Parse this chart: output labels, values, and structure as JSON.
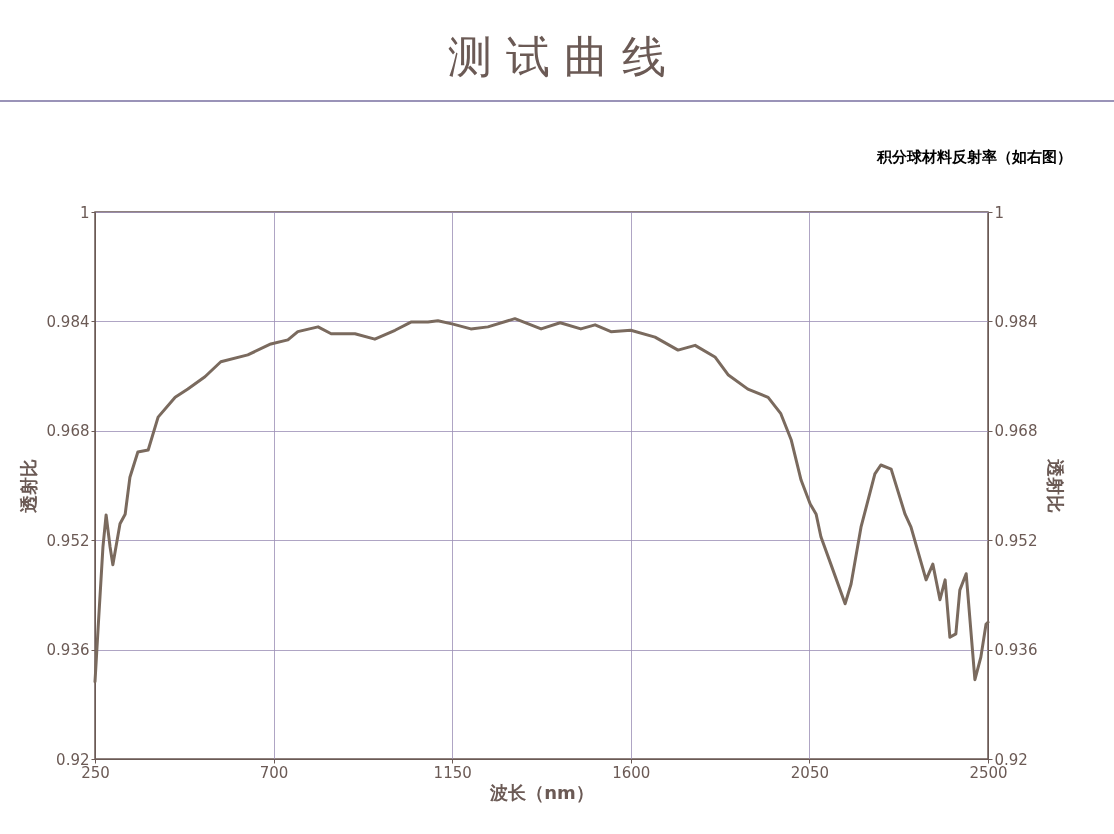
{
  "chart_data": {
    "type": "line",
    "title": "测 试 曲 线",
    "xlabel": "波长（nm）",
    "ylabel": "透射比",
    "y2label": "透射比",
    "annotations": [
      "积分球材料反射率（如右图）"
    ],
    "series": [
      {
        "color": "#7a6a5e",
        "x": [
          250,
          258,
          270,
          278,
          288,
          295,
          313,
          326,
          338,
          358,
          384,
          409,
          452,
          484,
          527,
          567,
          635,
          693,
          736,
          761,
          812,
          845,
          905,
          955,
          1006,
          1046,
          1089,
          1114,
          1152,
          1197,
          1240,
          1308,
          1374,
          1422,
          1474,
          1510,
          1550,
          1600,
          1661,
          1719,
          1762,
          1812,
          1845,
          1895,
          1946,
          1978,
          2004,
          2029,
          2052,
          2067,
          2079,
          2104,
          2140,
          2155,
          2180,
          2215,
          2230,
          2256,
          2291,
          2306,
          2344,
          2361,
          2379,
          2392,
          2404,
          2419,
          2429,
          2445,
          2467,
          2482,
          2495,
          2500
        ],
        "values": [
          0.9313,
          0.9393,
          0.951,
          0.9557,
          0.951,
          0.9484,
          0.9544,
          0.9558,
          0.9612,
          0.9649,
          0.9652,
          0.97,
          0.9729,
          0.9741,
          0.9759,
          0.9781,
          0.9791,
          0.9807,
          0.9813,
          0.9825,
          0.9832,
          0.9822,
          0.9822,
          0.9814,
          0.9827,
          0.9839,
          0.9839,
          0.9841,
          0.9836,
          0.9829,
          0.9832,
          0.9844,
          0.9829,
          0.9838,
          0.9829,
          0.9835,
          0.9825,
          0.9827,
          0.9817,
          0.9798,
          0.9805,
          0.9788,
          0.9762,
          0.9741,
          0.9729,
          0.9705,
          0.9667,
          0.9608,
          0.9573,
          0.9558,
          0.9525,
          0.9485,
          0.9427,
          0.9456,
          0.9539,
          0.9617,
          0.963,
          0.9624,
          0.9558,
          0.9539,
          0.9462,
          0.9485,
          0.9433,
          0.9462,
          0.9378,
          0.9383,
          0.9447,
          0.9471,
          0.9316,
          0.9349,
          0.9397,
          0.94
        ]
      }
    ],
    "xlim": [
      250,
      2500
    ],
    "xticks": [
      250,
      700,
      1150,
      1600,
      2050,
      2500
    ],
    "ylim": [
      0.92,
      1
    ],
    "yticks": [
      0.92,
      0.936,
      0.952,
      0.968,
      0.984,
      1
    ],
    "y2lim": [
      0.92,
      1
    ],
    "y2ticks": [
      0.92,
      0.936,
      0.952,
      0.968,
      0.984,
      1
    ],
    "grid": true,
    "line_style": "solid",
    "marker": "none"
  }
}
